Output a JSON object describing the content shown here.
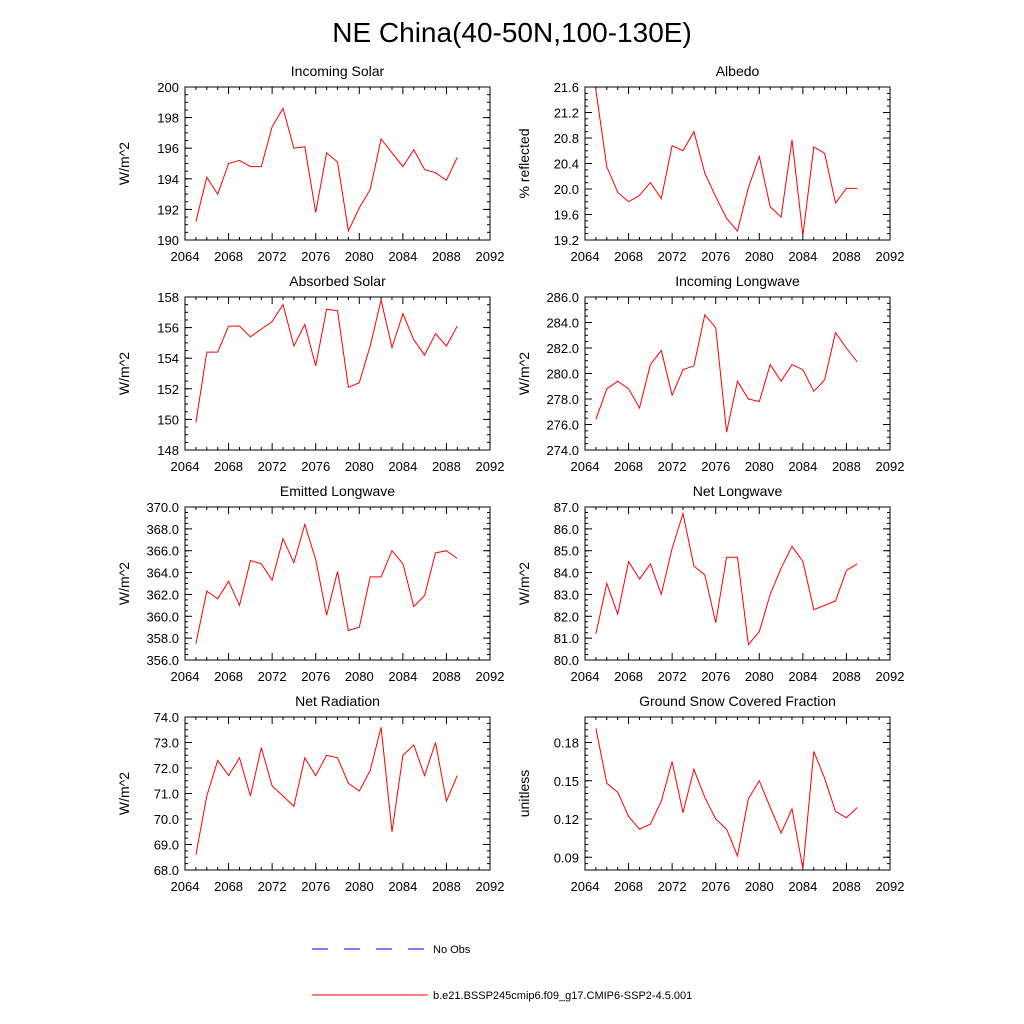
{
  "title": "NE China(40-50N,100-130E)",
  "colors": {
    "series": "#ff0000",
    "obs": "#0000ff",
    "axis": "#000000"
  },
  "legend": {
    "obs_label": "No Obs",
    "model_label": "b.e21.BSSP245cmip6.f09_g17.CMIP6-SSP2-4.5.001"
  },
  "chart_data": [
    {
      "type": "line",
      "title": "Incoming Solar",
      "ylabel": "W/m^2",
      "xlim": [
        2064,
        2092
      ],
      "xticks": [
        2064,
        2068,
        2072,
        2076,
        2080,
        2084,
        2088,
        2092
      ],
      "xtick_labels": [
        "2064",
        "2068",
        "2072",
        "2076",
        "2080",
        "2084",
        "2088",
        "2092"
      ],
      "ylim": [
        190,
        200
      ],
      "yticks": [
        190,
        192,
        194,
        196,
        198,
        200
      ],
      "ytick_labels": [
        "190",
        "192",
        "194",
        "196",
        "198",
        "200"
      ],
      "yminor": 0.5,
      "x": [
        2065,
        2066,
        2067,
        2068,
        2069,
        2070,
        2071,
        2072,
        2073,
        2074,
        2075,
        2076,
        2077,
        2078,
        2079,
        2080,
        2081,
        2082,
        2083,
        2084,
        2085,
        2086,
        2087,
        2088,
        2089
      ],
      "values": [
        191.2,
        194.1,
        193.0,
        195.0,
        195.2,
        194.8,
        194.8,
        197.4,
        198.6,
        196.0,
        196.1,
        191.8,
        195.7,
        195.1,
        190.6,
        192.1,
        193.3,
        196.6,
        195.7,
        194.8,
        195.9,
        194.6,
        194.4,
        193.9,
        195.4
      ]
    },
    {
      "type": "line",
      "title": "Albedo",
      "ylabel": "% reflected",
      "xlim": [
        2064,
        2092
      ],
      "xticks": [
        2064,
        2068,
        2072,
        2076,
        2080,
        2084,
        2088,
        2092
      ],
      "xtick_labels": [
        "2064",
        "2068",
        "2072",
        "2076",
        "2080",
        "2084",
        "2088",
        "2092"
      ],
      "ylim": [
        19.2,
        21.6
      ],
      "yticks": [
        19.2,
        19.6,
        20.0,
        20.4,
        20.8,
        21.2,
        21.6
      ],
      "ytick_labels": [
        "19.2",
        "19.6",
        "20.0",
        "20.4",
        "20.8",
        "21.2",
        "21.6"
      ],
      "yminor": 0.1,
      "x": [
        2065,
        2066,
        2067,
        2068,
        2069,
        2070,
        2071,
        2072,
        2073,
        2074,
        2075,
        2076,
        2077,
        2078,
        2079,
        2080,
        2081,
        2082,
        2083,
        2084,
        2085,
        2086,
        2087,
        2088,
        2089
      ],
      "values": [
        21.55,
        20.35,
        19.95,
        19.8,
        19.9,
        20.1,
        19.85,
        20.68,
        20.6,
        20.9,
        20.25,
        19.88,
        19.54,
        19.34,
        20.02,
        20.51,
        19.72,
        19.56,
        20.77,
        19.27,
        20.66,
        20.56,
        19.78,
        20.01,
        20.01
      ]
    },
    {
      "type": "line",
      "title": "Absorbed Solar",
      "ylabel": "W/m^2",
      "xlim": [
        2064,
        2092
      ],
      "xticks": [
        2064,
        2068,
        2072,
        2076,
        2080,
        2084,
        2088,
        2092
      ],
      "xtick_labels": [
        "2064",
        "2068",
        "2072",
        "2076",
        "2080",
        "2084",
        "2088",
        "2092"
      ],
      "ylim": [
        148,
        158
      ],
      "yticks": [
        148,
        150,
        152,
        154,
        156,
        158
      ],
      "ytick_labels": [
        "148",
        "150",
        "152",
        "154",
        "156",
        "158"
      ],
      "yminor": 0.5,
      "x": [
        2065,
        2066,
        2067,
        2068,
        2069,
        2070,
        2071,
        2072,
        2073,
        2074,
        2075,
        2076,
        2077,
        2078,
        2079,
        2080,
        2081,
        2082,
        2083,
        2084,
        2085,
        2086,
        2087,
        2088,
        2089
      ],
      "values": [
        149.8,
        154.4,
        154.4,
        156.1,
        156.1,
        155.4,
        155.9,
        156.4,
        157.5,
        154.8,
        156.2,
        153.5,
        157.2,
        157.1,
        152.1,
        152.4,
        154.8,
        157.8,
        154.7,
        156.9,
        155.2,
        154.2,
        155.6,
        154.8,
        156.1
      ]
    },
    {
      "type": "line",
      "title": "Incoming Longwave",
      "ylabel": "W/m^2",
      "xlim": [
        2064,
        2092
      ],
      "xticks": [
        2064,
        2068,
        2072,
        2076,
        2080,
        2084,
        2088,
        2092
      ],
      "xtick_labels": [
        "2064",
        "2068",
        "2072",
        "2076",
        "2080",
        "2084",
        "2088",
        "2092"
      ],
      "ylim": [
        274,
        286
      ],
      "yticks": [
        274,
        276,
        278,
        280,
        282,
        284,
        286
      ],
      "ytick_labels": [
        "274.0",
        "276.0",
        "278.0",
        "280.0",
        "282.0",
        "284.0",
        "286.0"
      ],
      "yminor": 0.5,
      "x": [
        2065,
        2066,
        2067,
        2068,
        2069,
        2070,
        2071,
        2072,
        2073,
        2074,
        2075,
        2076,
        2077,
        2078,
        2079,
        2080,
        2081,
        2082,
        2083,
        2084,
        2085,
        2086,
        2087,
        2088,
        2089
      ],
      "values": [
        276.4,
        278.8,
        279.4,
        278.8,
        277.3,
        280.7,
        281.8,
        278.3,
        280.3,
        280.6,
        284.6,
        283.6,
        275.4,
        279.4,
        278.0,
        277.8,
        280.7,
        279.4,
        280.7,
        280.3,
        278.6,
        279.5,
        283.2,
        282.0,
        280.9
      ]
    },
    {
      "type": "line",
      "title": "Emitted Longwave",
      "ylabel": "W/m^2",
      "xlim": [
        2064,
        2092
      ],
      "xticks": [
        2064,
        2068,
        2072,
        2076,
        2080,
        2084,
        2088,
        2092
      ],
      "xtick_labels": [
        "2064",
        "2068",
        "2072",
        "2076",
        "2080",
        "2084",
        "2088",
        "2092"
      ],
      "ylim": [
        356,
        370
      ],
      "yticks": [
        356,
        358,
        360,
        362,
        364,
        366,
        368,
        370
      ],
      "ytick_labels": [
        "356.0",
        "358.0",
        "360.0",
        "362.0",
        "364.0",
        "366.0",
        "368.0",
        "370.0"
      ],
      "yminor": 0.5,
      "x": [
        2065,
        2066,
        2067,
        2068,
        2069,
        2070,
        2071,
        2072,
        2073,
        2074,
        2075,
        2076,
        2077,
        2078,
        2079,
        2080,
        2081,
        2082,
        2083,
        2084,
        2085,
        2086,
        2087,
        2088,
        2089
      ],
      "values": [
        357.5,
        362.3,
        361.6,
        363.2,
        361.0,
        365.1,
        364.8,
        363.3,
        367.1,
        364.9,
        368.4,
        365.2,
        360.1,
        364.1,
        358.7,
        359.0,
        363.6,
        363.6,
        366.0,
        364.8,
        360.9,
        361.9,
        365.8,
        366.0,
        365.3
      ]
    },
    {
      "type": "line",
      "title": "Net Longwave",
      "ylabel": "W/m^2",
      "xlim": [
        2064,
        2092
      ],
      "xticks": [
        2064,
        2068,
        2072,
        2076,
        2080,
        2084,
        2088,
        2092
      ],
      "xtick_labels": [
        "2064",
        "2068",
        "2072",
        "2076",
        "2080",
        "2084",
        "2088",
        "2092"
      ],
      "ylim": [
        80,
        87
      ],
      "yticks": [
        80,
        81,
        82,
        83,
        84,
        85,
        86,
        87
      ],
      "ytick_labels": [
        "80.0",
        "81.0",
        "82.0",
        "83.0",
        "84.0",
        "85.0",
        "86.0",
        "87.0"
      ],
      "yminor": 0.25,
      "x": [
        2065,
        2066,
        2067,
        2068,
        2069,
        2070,
        2071,
        2072,
        2073,
        2074,
        2075,
        2076,
        2077,
        2078,
        2079,
        2080,
        2081,
        2082,
        2083,
        2084,
        2085,
        2086,
        2087,
        2088,
        2089
      ],
      "values": [
        81.2,
        83.5,
        82.1,
        84.5,
        83.7,
        84.4,
        83.0,
        85.1,
        86.7,
        84.3,
        83.9,
        81.7,
        84.7,
        84.7,
        80.7,
        81.3,
        83.0,
        84.2,
        85.2,
        84.5,
        82.3,
        82.5,
        82.7,
        84.1,
        84.4
      ]
    },
    {
      "type": "line",
      "title": "Net Radiation",
      "ylabel": "W/m^2",
      "xlim": [
        2064,
        2092
      ],
      "xticks": [
        2064,
        2068,
        2072,
        2076,
        2080,
        2084,
        2088,
        2092
      ],
      "xtick_labels": [
        "2064",
        "2068",
        "2072",
        "2076",
        "2080",
        "2084",
        "2088",
        "2092"
      ],
      "ylim": [
        68,
        74
      ],
      "yticks": [
        68,
        69,
        70,
        71,
        72,
        73,
        74
      ],
      "ytick_labels": [
        "68.0",
        "69.0",
        "70.0",
        "71.0",
        "72.0",
        "73.0",
        "74.0"
      ],
      "yminor": 0.25,
      "x": [
        2065,
        2066,
        2067,
        2068,
        2069,
        2070,
        2071,
        2072,
        2073,
        2074,
        2075,
        2076,
        2077,
        2078,
        2079,
        2080,
        2081,
        2082,
        2083,
        2084,
        2085,
        2086,
        2087,
        2088,
        2089
      ],
      "values": [
        68.6,
        70.9,
        72.3,
        71.7,
        72.4,
        70.9,
        72.8,
        71.3,
        70.9,
        70.5,
        72.4,
        71.7,
        72.5,
        72.4,
        71.4,
        71.1,
        71.9,
        73.6,
        69.5,
        72.5,
        72.9,
        71.7,
        73.0,
        70.7,
        71.7
      ]
    },
    {
      "type": "line",
      "title": "Ground Snow Covered Fraction",
      "ylabel": "unitless",
      "xlim": [
        2064,
        2092
      ],
      "xticks": [
        2064,
        2068,
        2072,
        2076,
        2080,
        2084,
        2088,
        2092
      ],
      "xtick_labels": [
        "2064",
        "2068",
        "2072",
        "2076",
        "2080",
        "2084",
        "2088",
        "2092"
      ],
      "ylim": [
        0.08,
        0.2
      ],
      "yticks": [
        0.09,
        0.12,
        0.15,
        0.18
      ],
      "ytick_labels": [
        "0.09",
        "0.12",
        "0.15",
        "0.18"
      ],
      "yminor": 0.005,
      "x": [
        2065,
        2066,
        2067,
        2068,
        2069,
        2070,
        2071,
        2072,
        2073,
        2074,
        2075,
        2076,
        2077,
        2078,
        2079,
        2080,
        2081,
        2082,
        2083,
        2084,
        2085,
        2086,
        2087,
        2088,
        2089
      ],
      "values": [
        0.191,
        0.148,
        0.141,
        0.122,
        0.112,
        0.116,
        0.134,
        0.165,
        0.125,
        0.159,
        0.137,
        0.12,
        0.112,
        0.091,
        0.136,
        0.15,
        0.129,
        0.109,
        0.128,
        0.081,
        0.173,
        0.152,
        0.126,
        0.121,
        0.129
      ]
    }
  ]
}
